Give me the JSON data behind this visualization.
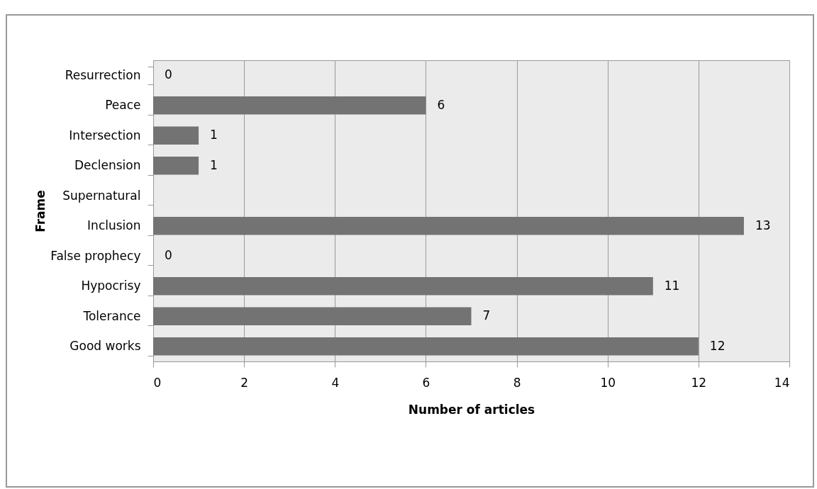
{
  "chart_data": {
    "type": "bar",
    "orientation": "horizontal",
    "xlabel": "Number of articles",
    "ylabel": "Frame",
    "categories": [
      "Resurrection",
      "Peace",
      "Intersection",
      "Declension",
      "Supernatural",
      "Inclusion",
      "False prophecy",
      "Hypocrisy",
      "Tolerance",
      "Good works"
    ],
    "values": [
      0,
      6,
      1,
      1,
      null,
      13,
      0,
      11,
      7,
      12
    ],
    "color": "#737373",
    "xlim": [
      0,
      14
    ],
    "xticks": [
      0,
      2,
      4,
      6,
      8,
      10,
      12,
      14
    ],
    "grid": "x",
    "data_labels": true
  }
}
